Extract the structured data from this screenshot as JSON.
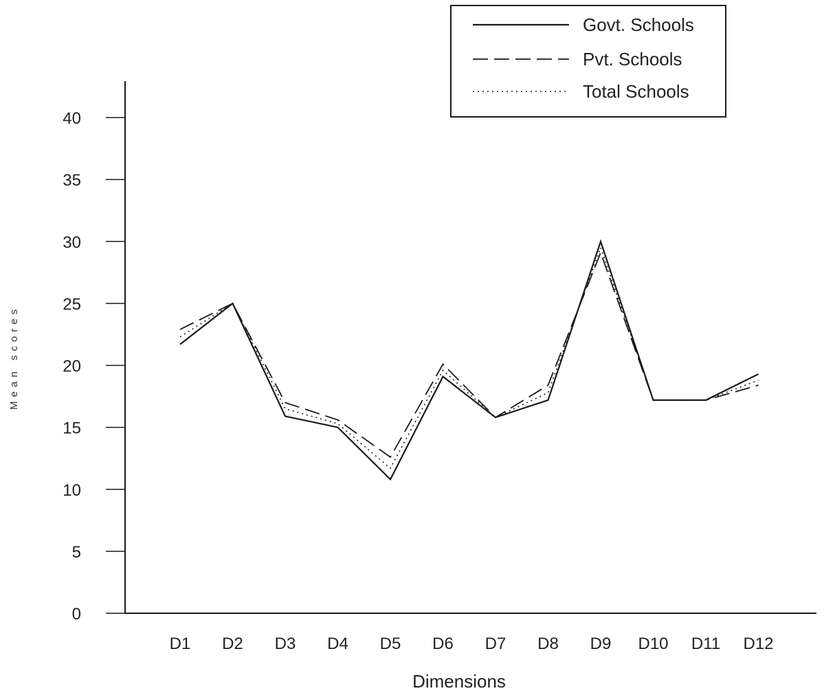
{
  "chart_data": {
    "type": "line",
    "title": "",
    "xlabel": "Dimensions",
    "ylabel": "Mean scores",
    "categories": [
      "D1",
      "D2",
      "D3",
      "D4",
      "D5",
      "D6",
      "D7",
      "D8",
      "D9",
      "D10",
      "D11",
      "D12"
    ],
    "ylim": [
      0,
      40
    ],
    "yticks": [
      0,
      5,
      10,
      15,
      20,
      25,
      30,
      35,
      40
    ],
    "grid": false,
    "legend_position": "top-right",
    "series": [
      {
        "name": "Govt. Schools",
        "style": "solid",
        "values": [
          21.7,
          25.0,
          15.9,
          15.0,
          10.8,
          19.1,
          15.8,
          17.2,
          30.0,
          17.2,
          17.2,
          19.3
        ]
      },
      {
        "name": "Pvt. Schools",
        "style": "dashed",
        "values": [
          22.9,
          25.0,
          17.0,
          15.6,
          12.6,
          20.1,
          15.8,
          18.4,
          29.1,
          17.2,
          17.2,
          18.4
        ]
      },
      {
        "name": "Total Schools",
        "style": "dotted",
        "values": [
          22.3,
          25.0,
          16.5,
          15.3,
          11.7,
          19.6,
          15.8,
          17.8,
          29.5,
          17.2,
          17.2,
          18.8
        ]
      }
    ]
  }
}
